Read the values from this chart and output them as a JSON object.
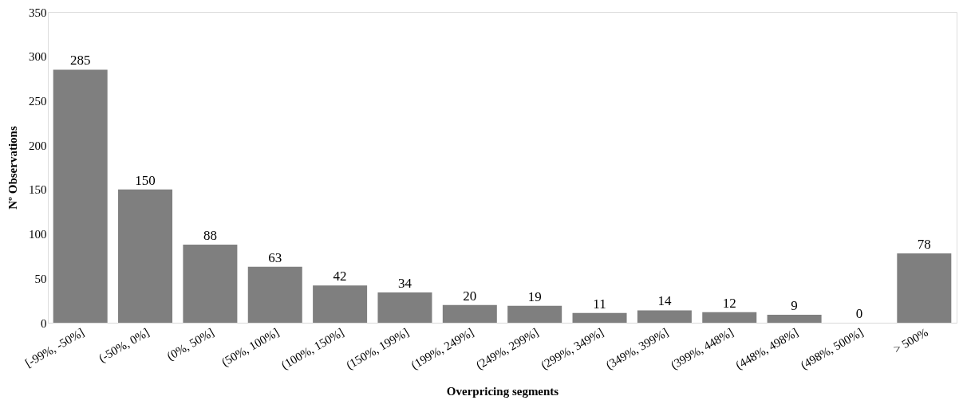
{
  "chart_data": {
    "type": "bar",
    "xlabel": "Overpricing segments",
    "ylabel": "Nº Observations",
    "categories": [
      "[-99%, -50%]",
      "(-50%, 0%]",
      "(0%, 50%]",
      "(50%, 100%]",
      "(100%, 150%]",
      "(150%, 199%]",
      "(199%, 249%]",
      "(249%, 299%]",
      "(299%, 349%]",
      "(349%, 399%]",
      "(399%, 448%]",
      "(448%, 498%]",
      "(498%, 500%]",
      "> 500%"
    ],
    "values": [
      285,
      150,
      88,
      63,
      42,
      34,
      20,
      19,
      11,
      14,
      12,
      9,
      0,
      78
    ],
    "color": "#7f7f7f",
    "ylim": [
      0,
      350
    ],
    "yticks": [
      0,
      50,
      100,
      150,
      200,
      250,
      300,
      350
    ],
    "grid": false,
    "data_labels": true
  }
}
